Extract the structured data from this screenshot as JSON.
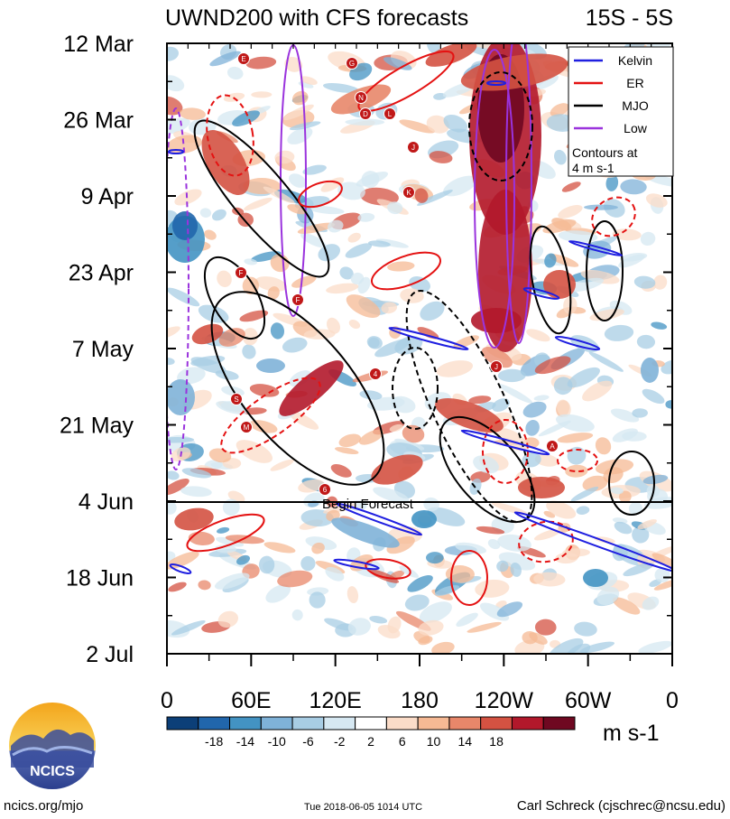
{
  "header": {
    "title": "UWND200 with CFS forecasts",
    "region": "15S - 5S"
  },
  "chart_data": {
    "type": "heatmap",
    "title": "UWND200 with CFS forecasts",
    "subtitle": "15S - 5S",
    "y_axis": {
      "tick_labels": [
        "12 Mar",
        "26 Mar",
        "9 Apr",
        "23 Apr",
        "7 May",
        "21 May",
        "4 Jun",
        "18 Jun",
        "2 Jul"
      ],
      "range": [
        "12 Mar",
        "2 Jul"
      ]
    },
    "x_axis": {
      "tick_labels": [
        "0",
        "60E",
        "120E",
        "180",
        "120W",
        "60W",
        "0"
      ],
      "range_deg_east": [
        0,
        360
      ]
    },
    "forecast_marker": {
      "label": "Begin Forecast",
      "date": "4 Jun"
    },
    "colorbar": {
      "levels": [
        "-18",
        "-14",
        "-10",
        "-6",
        "-2",
        "2",
        "6",
        "10",
        "14",
        "18"
      ],
      "units": "m s-1",
      "colors": [
        "#0c3f78",
        "#2166ac",
        "#4393c3",
        "#7fb2d8",
        "#a8cde4",
        "#d6e8f2",
        "#ffffff",
        "#fbdcc8",
        "#f6b994",
        "#e8876a",
        "#d45242",
        "#b2182b",
        "#6f0821"
      ]
    },
    "legend": {
      "position": "top-right",
      "entries": [
        {
          "label": "Kelvin",
          "color": "#1f1fe0"
        },
        {
          "label": "ER",
          "color": "#e41212"
        },
        {
          "label": "MJO",
          "color": "#000000"
        },
        {
          "label": "Low",
          "color": "#9a33dd"
        }
      ],
      "note_line1": "Contours at",
      "note_line2": "4 m s-1"
    },
    "storm_markers": [
      "E",
      "G",
      "N",
      "D",
      "L",
      "J",
      "K",
      "F",
      "F",
      "4",
      "S",
      "M",
      "6",
      "J",
      "A"
    ]
  },
  "footer": {
    "logo_text": "NCICS",
    "website": "ncics.org/mjo",
    "timestamp": "Tue 2018-06-05 1014 UTC",
    "credit": "Carl Schreck (cjschrec@ncsu.edu)"
  }
}
